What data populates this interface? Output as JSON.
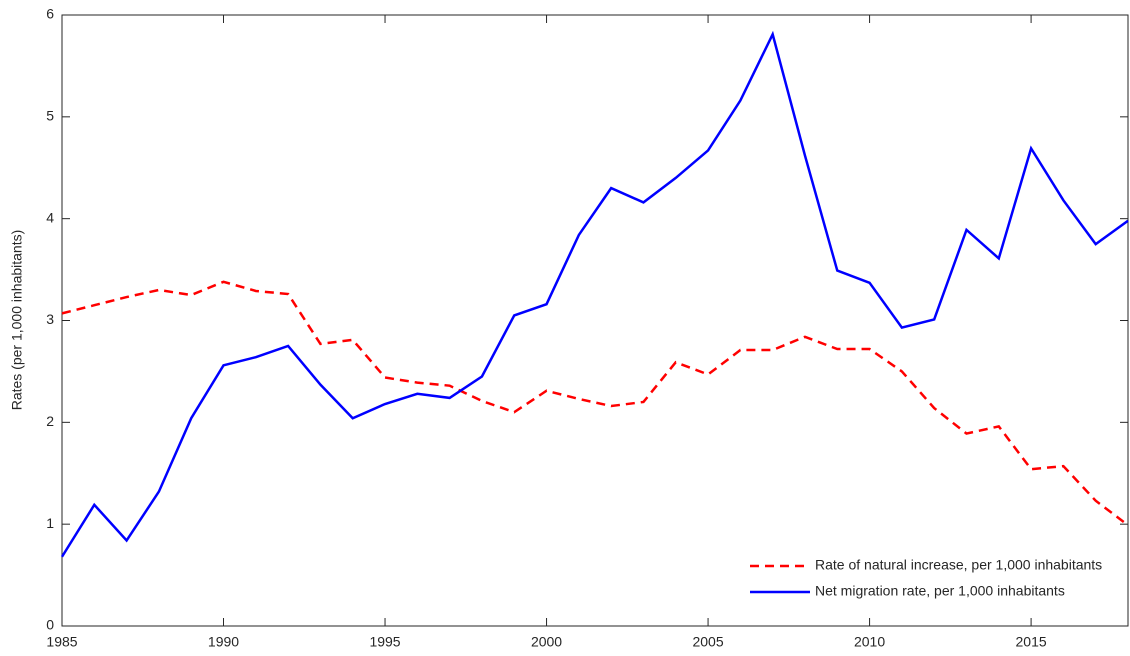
{
  "chart_data": {
    "type": "line",
    "ylabel": "Rates (per 1,000 inhabitants)",
    "x": [
      1985,
      1986,
      1987,
      1988,
      1989,
      1990,
      1991,
      1992,
      1993,
      1994,
      1995,
      1996,
      1997,
      1998,
      1999,
      2000,
      2001,
      2002,
      2003,
      2004,
      2005,
      2006,
      2007,
      2008,
      2009,
      2010,
      2011,
      2012,
      2013,
      2014,
      2015,
      2016,
      2017,
      2018
    ],
    "series": [
      {
        "name": "Rate of natural increase, per 1,000 inhabitants",
        "color": "#ff0000",
        "dash": true,
        "values": [
          3.07,
          3.15,
          3.23,
          3.3,
          3.25,
          3.38,
          3.29,
          3.26,
          2.77,
          2.81,
          2.44,
          2.39,
          2.36,
          2.21,
          2.1,
          2.31,
          2.23,
          2.16,
          2.2,
          2.59,
          2.47,
          2.71,
          2.71,
          2.84,
          2.72,
          2.72,
          2.5,
          2.14,
          1.89,
          1.96,
          1.54,
          1.57,
          1.23,
          0.99
        ]
      },
      {
        "name": "Net migration rate, per 1,000 inhabitants",
        "color": "#0000ff",
        "dash": false,
        "values": [
          0.68,
          1.19,
          0.84,
          1.32,
          2.04,
          2.56,
          2.64,
          2.75,
          2.37,
          2.04,
          2.18,
          2.28,
          2.24,
          2.45,
          3.05,
          3.16,
          3.84,
          4.3,
          4.16,
          4.4,
          4.67,
          5.16,
          5.81,
          4.62,
          3.49,
          3.37,
          2.93,
          3.01,
          3.89,
          3.61,
          4.69,
          4.18,
          3.75,
          3.98
        ]
      }
    ],
    "xlim": [
      1985,
      2018
    ],
    "xticks": [
      1985,
      1990,
      1995,
      2000,
      2005,
      2010,
      2015
    ],
    "ylim": [
      0,
      6
    ],
    "yticks": [
      0,
      1,
      2,
      3,
      4,
      5,
      6
    ],
    "grid": false,
    "legend": "lower right"
  }
}
